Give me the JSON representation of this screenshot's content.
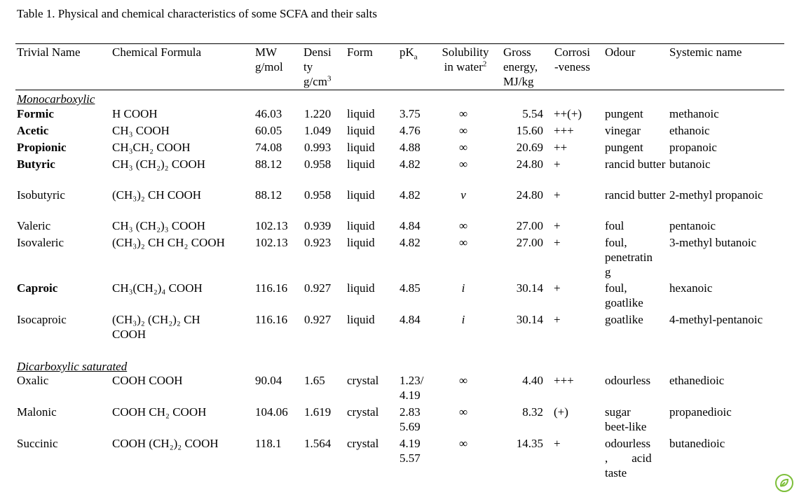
{
  "caption": "Table 1. Physical and chemical characteristics of some SCFA and their salts",
  "headers": {
    "trivial_name": "Trivial Name",
    "chemical_formula": "Chemical Formula",
    "mw_1": "MW",
    "mw_2": "g/mol",
    "density_1": "Densi",
    "density_2": "ty",
    "density_3": "g/cm",
    "density_sup": "3",
    "form": "Form",
    "pka_main": "pK",
    "pka_sub": "a",
    "solubility_1": "Solubility",
    "solubility_2": "in water",
    "solubility_sup": "2",
    "gross_1": "Gross",
    "gross_2": "energy,",
    "gross_3": "MJ/kg",
    "corrosiveness_1": "Corrosi",
    "corrosiveness_2": "-veness",
    "odour": "Odour",
    "systemic_name": "Systemic name"
  },
  "groups": {
    "monocarboxylic": "Monocarboxylic",
    "dicarboxylic": "Dicarboxylic saturated"
  },
  "rows": [
    {
      "name": "Formic",
      "formula": "H COOH",
      "mw": "46.03",
      "density": "1.220",
      "form": "liquid",
      "pka": "3.75",
      "solubility": "∞",
      "energy": "5.54",
      "corr": "++(+)",
      "odour": "pungent",
      "systemic": "methanoic"
    },
    {
      "name": "Acetic",
      "formula": "CH₃ COOH",
      "mw": "60.05",
      "density": "1.049",
      "form": "liquid",
      "pka": "4.76",
      "solubility": "∞",
      "energy": "15.60",
      "corr": "+++",
      "odour": "vinegar",
      "systemic": "ethanoic"
    },
    {
      "name": "Propionic",
      "formula": "CH₃CH₂ COOH",
      "mw": "74.08",
      "density": "0.993",
      "form": "liquid",
      "pka": "4.88",
      "solubility": "∞",
      "energy": "20.69",
      "corr": "++",
      "odour": "pungent",
      "systemic": "propanoic"
    },
    {
      "name": "Butyric",
      "formula": "CH₃ (CH₂)₂ COOH",
      "mw": "88.12",
      "density": "0.958",
      "form": "liquid",
      "pka": "4.82",
      "solubility": "∞",
      "energy": "24.80",
      "corr": "+",
      "odour": "rancid butter",
      "systemic": "butanoic"
    },
    {
      "name": "Isobutyric",
      "formula": "(CH₃)₂ CH COOH",
      "mw": "88.12",
      "density": "0.958",
      "form": "liquid",
      "pka": "4.82",
      "solubility": "v",
      "energy": "24.80",
      "corr": "+",
      "odour": "rancid butter",
      "systemic": "2-methyl propanoic"
    },
    {
      "name": "Valeric",
      "formula": "CH₃ (CH₂)₃ COOH",
      "mw": "102.13",
      "density": "0.939",
      "form": "liquid",
      "pka": "4.84",
      "solubility": "∞",
      "energy": "27.00",
      "corr": "+",
      "odour": "foul",
      "systemic": "pentanoic"
    },
    {
      "name": "Isovaleric",
      "formula": "(CH₃)₂ CH CH₂ COOH",
      "mw": "102.13",
      "density": "0.923",
      "form": "liquid",
      "pka": "4.82",
      "solubility": "∞",
      "energy": "27.00",
      "corr": "+",
      "odour_lines": [
        "foul,",
        "penetratin",
        "g"
      ],
      "systemic": "3-methyl butanoic"
    },
    {
      "name": "Caproic",
      "formula": "CH₃(CH₂)₄ COOH",
      "mw": "116.16",
      "density": "0.927",
      "form": "liquid",
      "pka": "4.85",
      "solubility": "i",
      "energy": "30.14",
      "corr": "+",
      "odour_lines": [
        "foul,",
        "goatlike"
      ],
      "systemic": "hexanoic"
    },
    {
      "name": "Isocaproic",
      "formula_lines": [
        "(CH₃)₂ (CH₂)₂ CH",
        "COOH"
      ],
      "mw": "116.16",
      "density": "0.927",
      "form": "liquid",
      "pka": "4.84",
      "solubility": "i",
      "energy": "30.14",
      "corr": "+",
      "odour": "goatlike",
      "systemic": "4-methyl-pentanoic"
    },
    {
      "name": "Oxalic",
      "formula": "COOH COOH",
      "mw": "90.04",
      "density": "1.65",
      "form": "crystal",
      "pka_lines": [
        "1.23/",
        "4.19"
      ],
      "solubility": "∞",
      "energy": "4.40",
      "corr": "+++",
      "odour": "odourless",
      "systemic": "ethanedioic"
    },
    {
      "name": "Malonic",
      "formula": "COOH CH₂ COOH",
      "mw": "104.06",
      "density": "1.619",
      "form": "crystal",
      "pka_lines": [
        "2.83",
        "5.69"
      ],
      "solubility": "∞",
      "energy": "8.32",
      "corr": "(+)",
      "odour_lines": [
        "sugar",
        "beet-like"
      ],
      "systemic": "propanedioic"
    },
    {
      "name": "Succinic",
      "formula": "COOH (CH₂)₂ COOH",
      "mw": "118.1",
      "density": "1.564",
      "form": "crystal",
      "pka_lines": [
        "4.19",
        "5.57"
      ],
      "solubility": "∞",
      "energy": "14.35",
      "corr": "+",
      "odour_lines": [
        "odourless",
        ",        acid",
        "taste"
      ],
      "systemic": "butanedioic"
    }
  ]
}
